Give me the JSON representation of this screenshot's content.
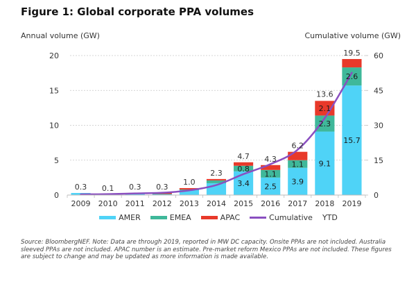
{
  "figure": {
    "title": "Figure 1: Global corporate PPA volumes",
    "source": "Source: BloombergNEF. Note: Data are through 2019, reported in MW DC capacity. Onsite PPAs are not included. Australia sleeved PPAs are not included. APAC number is an estimate. Pre-market reform Mexico PPAs are not included. These figures are subject to change and may be updated as more information is made available."
  },
  "chart_data": {
    "type": "bar",
    "stacked": true,
    "title": "Figure 1: Global corporate PPA volumes",
    "ylabel": "Annual volume (GW)",
    "y2label": "Cumulative volume (GW)",
    "xlabel": "",
    "ylim": [
      0,
      20
    ],
    "y2lim": [
      0,
      60
    ],
    "yticks": [
      0,
      5,
      10,
      15,
      20
    ],
    "y2ticks": [
      0,
      15,
      30,
      45,
      60
    ],
    "grid": true,
    "legend_position": "bottom",
    "categories": [
      "2009",
      "2010",
      "2011",
      "2012",
      "2013",
      "2014",
      "2015",
      "2016",
      "2017",
      "2018",
      "2019"
    ],
    "series": [
      {
        "name": "AMER",
        "color": "#4fd3f7",
        "type": "bar",
        "values": [
          0.3,
          0.1,
          0.2,
          0.1,
          0.7,
          1.7,
          3.4,
          2.5,
          3.9,
          9.1,
          15.7
        ],
        "labels": [
          "",
          "",
          "",
          "",
          "",
          "",
          "3.4",
          "2.5",
          "3.9",
          "9.1",
          "15.7"
        ]
      },
      {
        "name": "EMEA",
        "color": "#3fb89a",
        "type": "bar",
        "values": [
          0.0,
          0.0,
          0.05,
          0.05,
          0.1,
          0.4,
          0.8,
          1.1,
          1.1,
          2.3,
          2.6
        ],
        "labels": [
          "",
          "",
          "",
          "",
          "",
          "",
          "0.8",
          "1.1",
          "1.1",
          "2.3",
          "2.6"
        ]
      },
      {
        "name": "APAC",
        "color": "#e8392a",
        "type": "bar",
        "values": [
          0.0,
          0.0,
          0.05,
          0.15,
          0.2,
          0.2,
          0.5,
          0.7,
          1.2,
          2.1,
          1.2
        ],
        "labels": [
          "",
          "",
          "",
          "",
          "",
          "",
          "",
          "",
          "",
          "2.1",
          ""
        ]
      },
      {
        "name": "Cumulative",
        "color": "#8a4fc0",
        "type": "line",
        "axis": "right",
        "values": [
          0.3,
          0.4,
          0.7,
          1.0,
          2.0,
          4.3,
          9.0,
          13.3,
          19.5,
          33.1,
          52.6
        ]
      }
    ],
    "totals": [
      0.3,
      0.1,
      0.3,
      0.3,
      1.0,
      2.3,
      4.7,
      4.3,
      6.2,
      13.6,
      19.5
    ],
    "total_labels": [
      "0.3",
      "0.1",
      "0.3",
      "0.3",
      "1.0",
      "2.3",
      "4.7",
      "4.3",
      "6.2",
      "13.6",
      "19.5"
    ],
    "legend": [
      "AMER",
      "EMEA",
      "APAC",
      "Cumulative",
      "YTD"
    ]
  }
}
